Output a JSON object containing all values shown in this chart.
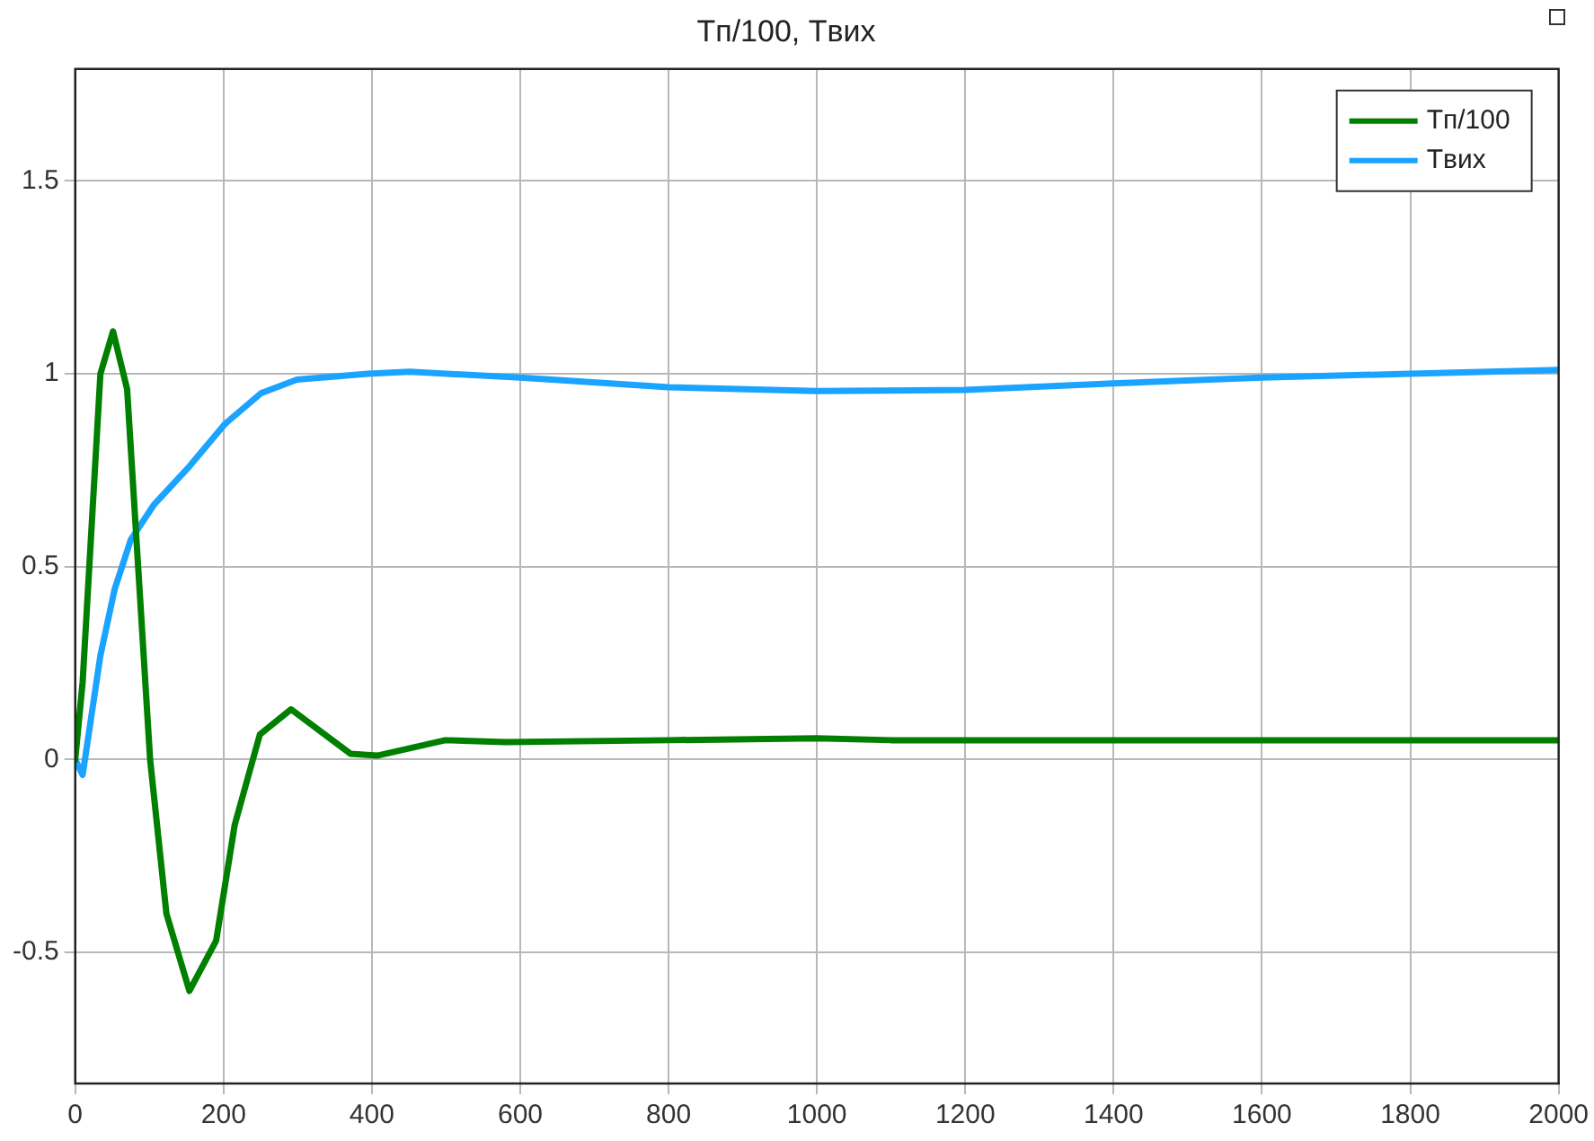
{
  "chart_data": {
    "type": "line",
    "title": "Tп/100, Tвих",
    "xlim": [
      0,
      2000
    ],
    "xticks": [
      0,
      200,
      400,
      600,
      800,
      1000,
      1200,
      1400,
      1600,
      1800,
      2000
    ],
    "ylim": [
      -0.84,
      1.79
    ],
    "yticks": [
      -0.5,
      0,
      0.5,
      1,
      1.5
    ],
    "grid": true,
    "legend": "top right",
    "marker": "none",
    "line_style": "solid",
    "series": [
      {
        "name": "Tп/100",
        "color": "#007f00",
        "x": [
          0,
          10,
          34,
          51,
          70,
          101,
          123,
          154,
          190,
          215,
          249,
          291,
          371,
          407,
          499,
          580,
          800,
          1000,
          1100,
          1400,
          2000
        ],
        "values": [
          0,
          0.2,
          1.0,
          1.11,
          0.96,
          0,
          -0.4,
          -0.6,
          -0.47,
          -0.17,
          0.065,
          0.13,
          0.015,
          0.01,
          0.05,
          0.045,
          0.05,
          0.055,
          0.05,
          0.05,
          0.05
        ]
      },
      {
        "name": "Tвих",
        "color": "#1aa3ff",
        "x": [
          0,
          10,
          34,
          53,
          75,
          106,
          154,
          202,
          251,
          299,
          395,
          451,
          600,
          800,
          1000,
          1200,
          1400,
          1600,
          1800,
          2000
        ],
        "values": [
          0,
          -0.04,
          0.27,
          0.44,
          0.57,
          0.66,
          0.76,
          0.87,
          0.95,
          0.985,
          1.0,
          1.005,
          0.99,
          0.965,
          0.955,
          0.958,
          0.975,
          0.99,
          1.0,
          1.01
        ]
      }
    ]
  }
}
